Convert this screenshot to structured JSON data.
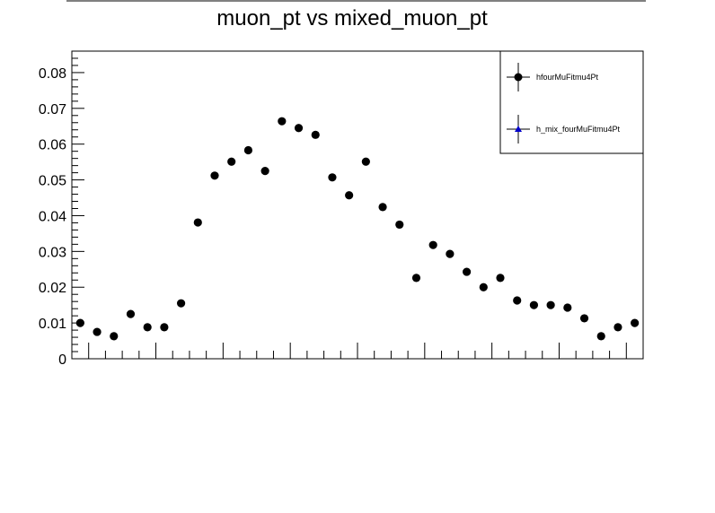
{
  "chart_data": {
    "type": "scatter",
    "title": "muon_pt vs mixed_muon_pt",
    "xlabel": "",
    "ylabel": "",
    "ylim": [
      0,
      0.086
    ],
    "y_ticks": [
      "0",
      "0.01",
      "0.02",
      "0.03",
      "0.04",
      "0.05",
      "0.06",
      "0.07",
      "0.08"
    ],
    "y_tick_values": [
      0,
      0.01,
      0.02,
      0.03,
      0.04,
      0.05,
      0.06,
      0.07,
      0.08
    ],
    "x_labels_shown": false,
    "bins": 34,
    "grid": false,
    "legend_position": "top-right",
    "series": [
      {
        "name": "hfourMuFitmu4Pt",
        "marker": "circle",
        "color": "#000000",
        "values": [
          0.01,
          0.0075,
          0.0063,
          0.0125,
          0.0088,
          0.0088,
          0.0155,
          0.0381,
          0.0512,
          0.0551,
          0.0583,
          0.0525,
          0.0664,
          0.0645,
          0.0626,
          0.0507,
          0.0457,
          0.0551,
          0.0424,
          0.0375,
          0.0226,
          0.0318,
          0.0293,
          0.0243,
          0.02,
          0.0226,
          0.0163,
          0.015,
          0.015,
          0.0143,
          0.0113,
          0.0063,
          0.0088,
          0.01
        ]
      },
      {
        "name": "h_mix_fourMuFitmu4Pt",
        "marker": "triangle",
        "color": "#0000cc",
        "values": []
      }
    ]
  }
}
